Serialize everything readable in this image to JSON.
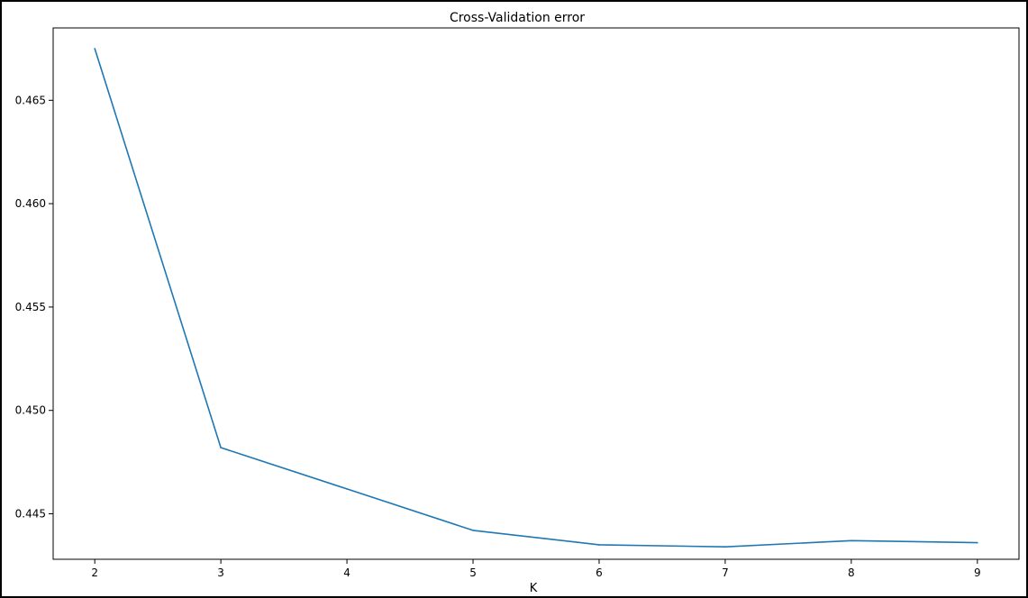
{
  "chart_data": {
    "type": "line",
    "title": "Cross-Validation error",
    "xlabel": "K",
    "ylabel": "",
    "x": [
      2,
      3,
      4,
      5,
      6,
      7,
      8,
      9
    ],
    "x_tick_labels": [
      "2",
      "3",
      "4",
      "5",
      "6",
      "7",
      "8",
      "9"
    ],
    "y_ticks": [
      0.445,
      0.45,
      0.455,
      0.46,
      0.465
    ],
    "y_tick_labels": [
      "0.445",
      "0.450",
      "0.455",
      "0.460",
      "0.465"
    ],
    "xlim": [
      1.67,
      9.33
    ],
    "ylim": [
      0.4428,
      0.4685
    ],
    "grid": false,
    "series": [
      {
        "values": [
          0.4675,
          0.4482,
          0.4462,
          0.4442,
          0.4435,
          0.4434,
          0.4437,
          0.4436
        ],
        "color": "#1f77b4"
      }
    ]
  }
}
